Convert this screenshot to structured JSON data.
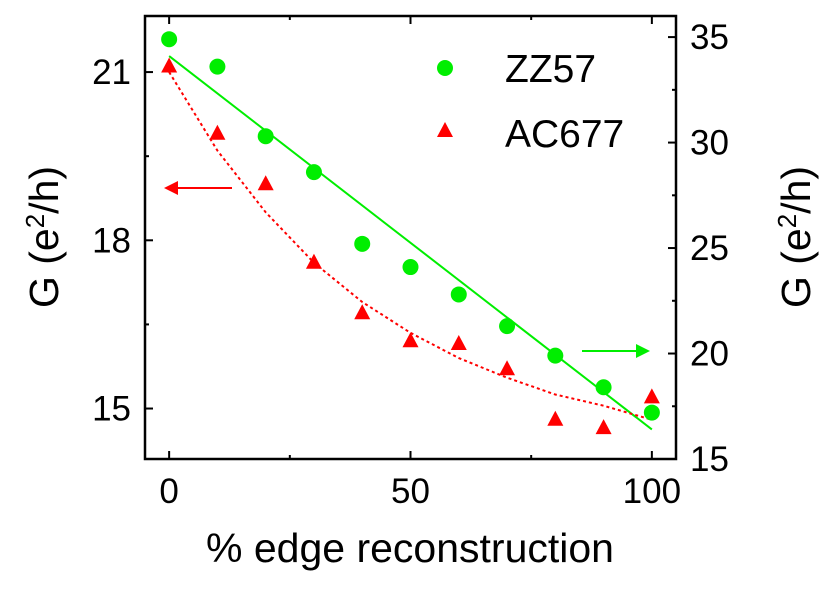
{
  "chart_data": {
    "type": "scatter",
    "xlabel": "% edge reconstruction",
    "ylabel_left": {
      "base": "G (e",
      "sup": "2",
      "tail": "/h)"
    },
    "ylabel_right": {
      "base": "G (e",
      "sup": "2",
      "tail": "/h)"
    },
    "x_range": [
      -5,
      105
    ],
    "y_left_range": [
      14.1,
      22.0
    ],
    "y_right_range": [
      15,
      36
    ],
    "x_ticks": [
      0,
      50,
      100
    ],
    "y_left_ticks": [
      15,
      18,
      21
    ],
    "y_right_ticks": [
      15,
      20,
      25,
      30,
      35
    ],
    "series": [
      {
        "name": "ZZ57",
        "axis": "right",
        "marker": "circle",
        "color": "#00ee00",
        "x": [
          0,
          10,
          20,
          30,
          40,
          50,
          60,
          70,
          80,
          90,
          100
        ],
        "values": [
          34.9,
          33.6,
          30.3,
          28.6,
          25.2,
          24.1,
          22.8,
          21.3,
          19.9,
          18.4,
          17.2
        ]
      },
      {
        "name": "AC677",
        "axis": "left",
        "marker": "triangle",
        "color": "#ff0000",
        "x": [
          0,
          10,
          20,
          30,
          40,
          50,
          60,
          70,
          80,
          90,
          100
        ],
        "values": [
          21.1,
          19.9,
          19.0,
          17.6,
          16.7,
          16.2,
          16.15,
          15.7,
          14.8,
          14.65,
          15.2
        ]
      }
    ],
    "fits": [
      {
        "name": "ZZ57 fit",
        "axis": "right",
        "style": "solid",
        "color": "#00ee00",
        "x": [
          0,
          100
        ],
        "values": [
          34.1,
          16.4
        ]
      },
      {
        "name": "AC677 fit",
        "axis": "left",
        "style": "dotted",
        "color": "#ff0000",
        "x": [
          0,
          10,
          20,
          30,
          40,
          50,
          60,
          70,
          80,
          90,
          100
        ],
        "values": [
          21.0,
          19.6,
          18.5,
          17.6,
          16.9,
          16.35,
          15.9,
          15.55,
          15.25,
          15.05,
          14.8
        ]
      }
    ],
    "annotations": [
      {
        "type": "arrow",
        "direction": "left",
        "color": "#ff0000",
        "points_to": "left axis"
      },
      {
        "type": "arrow",
        "direction": "right",
        "color": "#00ee00",
        "points_to": "right axis"
      }
    ],
    "legend": {
      "position": "top-right",
      "entries": [
        "ZZ57",
        "AC677"
      ]
    },
    "grid": false
  }
}
